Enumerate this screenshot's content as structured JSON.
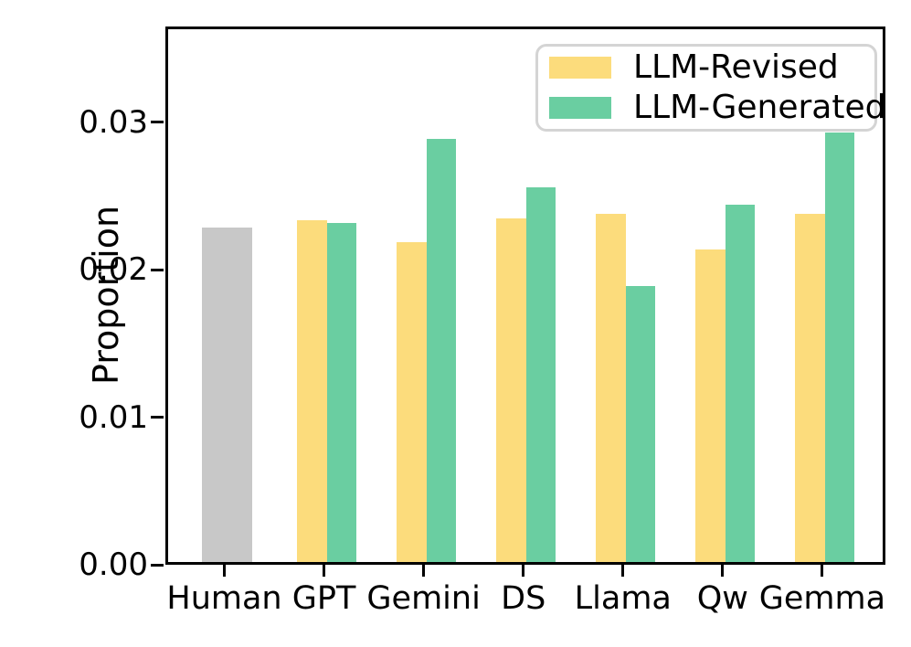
{
  "figure": {
    "background": "#ffffff",
    "spine_color": "#000000"
  },
  "axes": {
    "ylabel": "Proportion",
    "ytick_labels": [
      "0.00",
      "0.01",
      "0.02",
      "0.03"
    ],
    "xtick_labels": [
      "Human",
      "GPT",
      "Gemini",
      "DS",
      "Llama",
      "Qw",
      "Gemma"
    ]
  },
  "legend": {
    "border_color": "#d4d4d4",
    "items": [
      {
        "label": "LLM-Revised",
        "color": "#FCDC7C"
      },
      {
        "label": "LLM-Generated",
        "color": "#6ACEA1"
      }
    ]
  },
  "chart_data": {
    "type": "bar",
    "title": "",
    "xlabel": "",
    "ylabel": "Proportion",
    "categories": [
      "Human",
      "GPT",
      "Gemini",
      "DS",
      "Llama",
      "Qw",
      "Gemma"
    ],
    "series": [
      {
        "name": "LLM-Revised",
        "color": "#FCDC7C",
        "values": [
          null,
          0.0232,
          0.0217,
          0.0233,
          0.0236,
          0.0212,
          0.0236
        ]
      },
      {
        "name": "LLM-Generated",
        "color": "#6ACEA1",
        "values": [
          null,
          0.023,
          0.0287,
          0.0254,
          0.0187,
          0.0242,
          0.0291
        ]
      }
    ],
    "single_bars": [
      {
        "category": "Human",
        "value": 0.0227,
        "color": "#C8C8C8"
      }
    ],
    "ylim": [
      0,
      0.0365
    ],
    "yticks": [
      0,
      0.01,
      0.02,
      0.03
    ],
    "grid": false,
    "legend_position": "upper right"
  }
}
